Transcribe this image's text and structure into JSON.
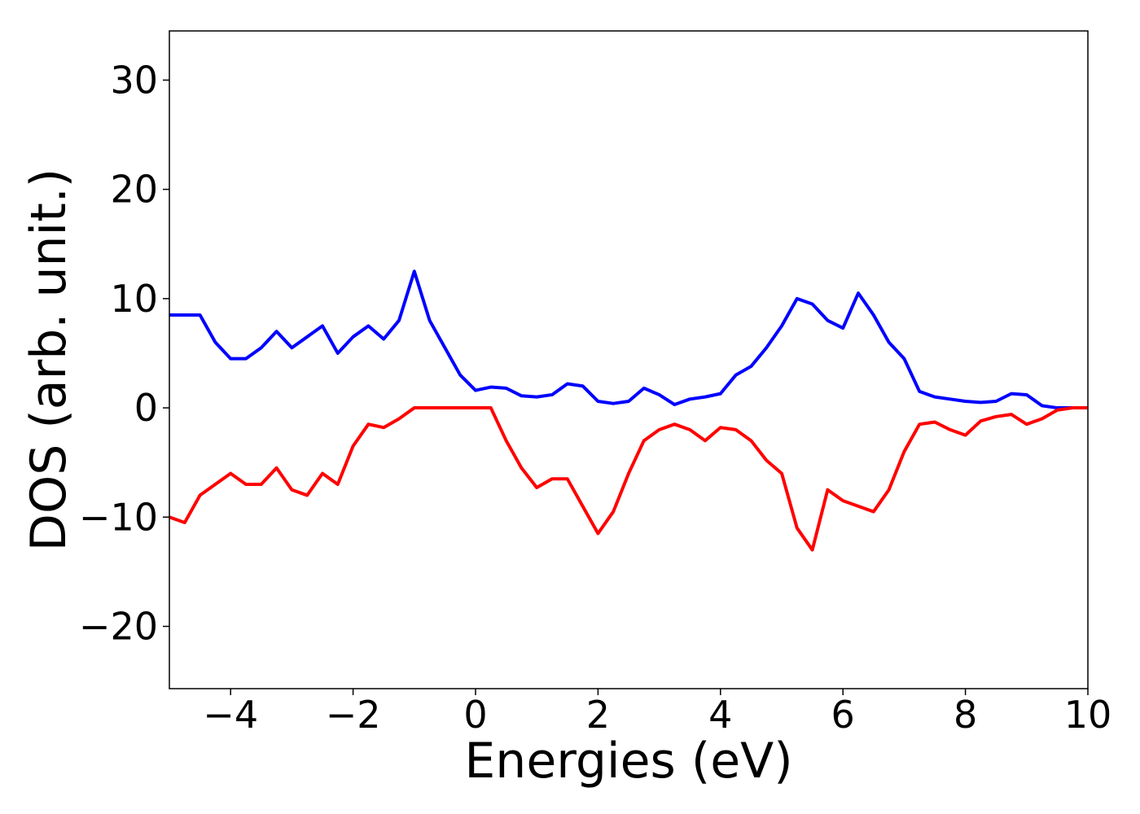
{
  "chart_data": {
    "type": "line",
    "x_label": "Energies (eV)",
    "y_label": "DOS (arb. unit.)",
    "x": [
      -5,
      -4.75,
      -4.5,
      -4.25,
      -4,
      -3.75,
      -3.5,
      -3.25,
      -3,
      -2.75,
      -2.5,
      -2.25,
      -2,
      -1.75,
      -1.5,
      -1.25,
      -1,
      -0.75,
      -0.5,
      -0.25,
      0,
      0.25,
      0.5,
      0.75,
      1,
      1.25,
      1.5,
      1.75,
      2,
      2.25,
      2.5,
      2.75,
      3,
      3.25,
      3.5,
      3.75,
      4,
      4.25,
      4.5,
      4.75,
      5,
      5.25,
      5.5,
      5.75,
      6,
      6.25,
      6.5,
      6.75,
      7,
      7.25,
      7.5,
      7.75,
      8,
      8.25,
      8.5,
      8.75,
      9,
      9.25,
      9.5,
      9.75,
      10
    ],
    "series": [
      {
        "color": "#0000ff",
        "values": [
          8.5,
          8.5,
          8.5,
          6.0,
          4.5,
          4.5,
          5.5,
          7.0,
          5.5,
          6.5,
          7.5,
          5.0,
          6.5,
          7.5,
          6.3,
          8.0,
          12.5,
          8.0,
          5.5,
          3.0,
          1.6,
          1.9,
          1.8,
          1.1,
          1.0,
          1.2,
          2.2,
          2.0,
          0.6,
          0.4,
          0.6,
          1.8,
          1.2,
          0.3,
          0.8,
          1.0,
          1.3,
          3.0,
          3.8,
          5.5,
          7.5,
          10.0,
          9.5,
          8.0,
          7.3,
          10.5,
          8.5,
          6.0,
          4.5,
          1.5,
          1.0,
          0.8,
          0.6,
          0.5,
          0.6,
          1.3,
          1.2,
          0.2,
          0,
          0,
          0
        ]
      },
      {
        "color": "#ff0000",
        "values": [
          -10.0,
          -10.5,
          -8.0,
          -7.0,
          -6.0,
          -7.0,
          -7.0,
          -5.5,
          -7.5,
          -8.0,
          -6.0,
          -7.0,
          -3.5,
          -1.5,
          -1.8,
          -1.0,
          0,
          0,
          0,
          0,
          0,
          0,
          -3.0,
          -5.5,
          -7.3,
          -6.5,
          -6.5,
          -9.0,
          -11.5,
          -9.5,
          -6.0,
          -3.0,
          -2.0,
          -1.5,
          -2.0,
          -3.0,
          -1.8,
          -2.0,
          -3.0,
          -4.8,
          -6.0,
          -11.0,
          -13.0,
          -7.5,
          -8.5,
          -9.0,
          -9.5,
          -7.5,
          -4.0,
          -1.5,
          -1.3,
          -2.0,
          -2.5,
          -1.2,
          -0.8,
          -0.6,
          -1.5,
          -1.0,
          -0.2,
          0,
          0
        ]
      }
    ],
    "xlim": [
      -5,
      10
    ],
    "ylim": [
      -25.7,
      34.5
    ],
    "xticks": [
      {
        "value": -4,
        "label": "−4"
      },
      {
        "value": -2,
        "label": "−2"
      },
      0,
      2,
      4,
      6,
      8,
      10
    ],
    "yticks": [
      {
        "value": -20,
        "label": "−20"
      },
      {
        "value": -10,
        "label": "−10"
      },
      0,
      10,
      20,
      30
    ]
  }
}
